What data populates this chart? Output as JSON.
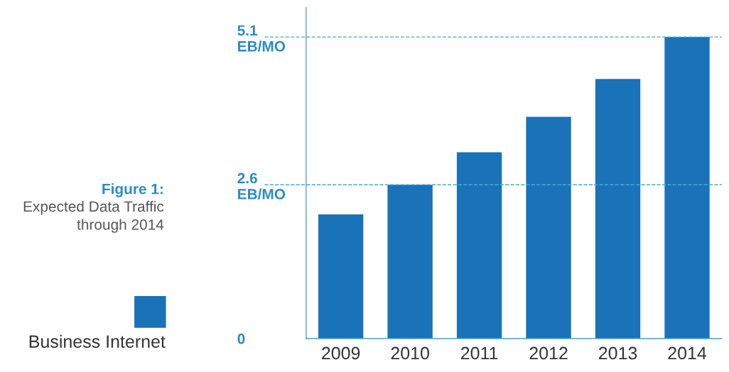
{
  "chart_data": {
    "type": "bar",
    "title": "Figure 1:",
    "subtitle": "Expected Data Traffic\nthrough 2014",
    "categories": [
      "2009",
      "2010",
      "2011",
      "2012",
      "2013",
      "2014"
    ],
    "series": [
      {
        "name": "Business Internet",
        "color": "#1a72b8",
        "values": [
          2.1,
          2.6,
          3.15,
          3.75,
          4.39,
          5.1
        ]
      }
    ],
    "ylim": [
      0,
      5.6
    ],
    "yticks": [
      0,
      {
        "value": 2.6,
        "label": "2.6\nEB/MO"
      },
      {
        "value": 5.1,
        "label": "5.1\nEB/MO"
      }
    ],
    "ref_lines": [
      {
        "axis": "y",
        "value": 2.6,
        "color": "#4aa8dc",
        "line_style": "dashed"
      },
      {
        "axis": "y",
        "value": 5.1,
        "color": "#4aa8dc",
        "line_style": "dashed"
      }
    ],
    "grid": false,
    "legend": "left"
  }
}
